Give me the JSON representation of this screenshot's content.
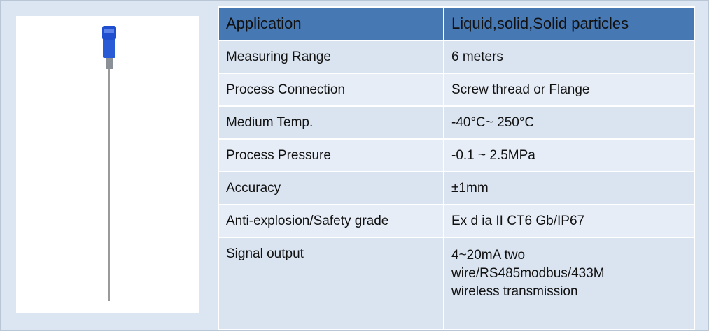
{
  "table": {
    "header": [
      "Application",
      "Liquid,solid,Solid particles"
    ],
    "rows": [
      [
        "Measuring Range",
        "6 meters"
      ],
      [
        "Process Connection",
        "Screw thread or Flange"
      ],
      [
        "Medium Temp.",
        "-40°C~ 250°C"
      ],
      [
        "Process Pressure",
        "-0.1 ~ 2.5MPa"
      ],
      [
        "Accuracy",
        "±1mm"
      ],
      [
        "Anti-explosion/Safety grade",
        "Ex d ia II CT6 Gb/IP67"
      ],
      [
        "Signal output",
        "4~20mA two wire/RS485modbus/433M wireless transmission"
      ]
    ]
  }
}
